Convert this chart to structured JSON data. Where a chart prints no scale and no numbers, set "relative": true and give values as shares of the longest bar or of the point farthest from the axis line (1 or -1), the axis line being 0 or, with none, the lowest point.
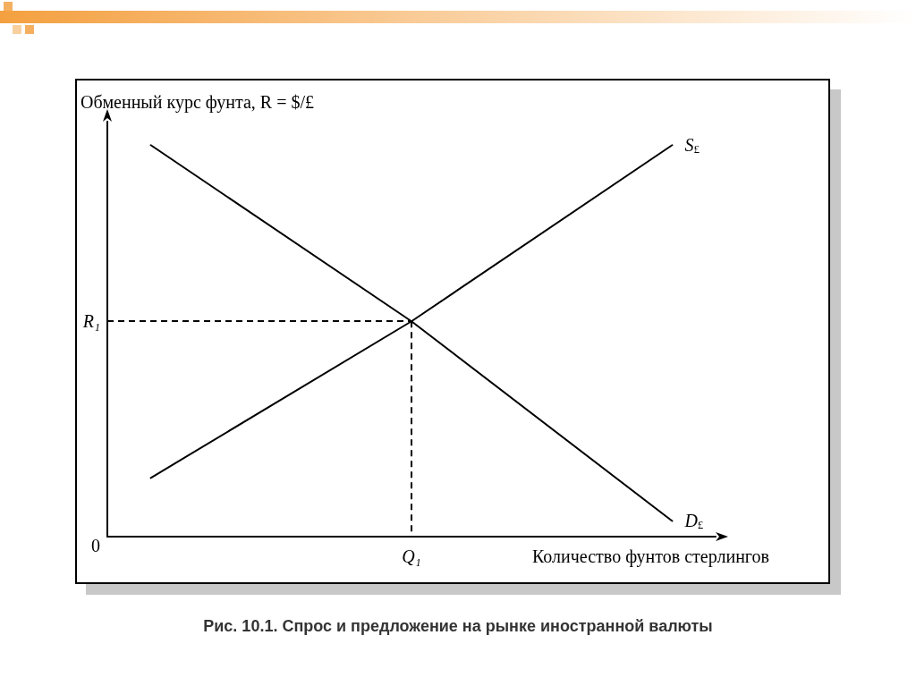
{
  "chart_data": {
    "type": "line",
    "relative": true,
    "ylabel": "Обменный курс фунта, R = $/£",
    "xlabel": "Количество фунтов стерлингов",
    "categories": [
      null,
      null,
      null,
      null,
      null,
      null,
      null,
      null,
      null,
      null,
      null,
      null,
      null,
      null,
      null
    ],
    "marker": "none",
    "grid": false,
    "legend": false,
    "series": [
      {
        "name": "S$_{£}$",
        "color": "#000000",
        "line_style": "solid",
        "values": [
          null,
          0.15,
          null,
          null,
          null,
          null,
          null,
          0.55,
          null,
          null,
          null,
          null,
          null,
          1.0,
          null
        ]
      },
      {
        "name": "D$_{£}$",
        "color": "#000000",
        "line_style": "solid",
        "values": [
          null,
          1.0,
          null,
          null,
          null,
          null,
          null,
          0.55,
          null,
          null,
          null,
          null,
          null,
          0.04,
          null
        ]
      }
    ],
    "ref_lines": [
      {
        "axis": "y",
        "value": 0.55,
        "label": "R₁",
        "color": "#000000",
        "line_style": "dashed"
      }
    ],
    "annotations": [
      "0",
      "Q₁",
      "Рис. 10.1. Спрос и предложение на рынке иностранной валюты"
    ]
  }
}
